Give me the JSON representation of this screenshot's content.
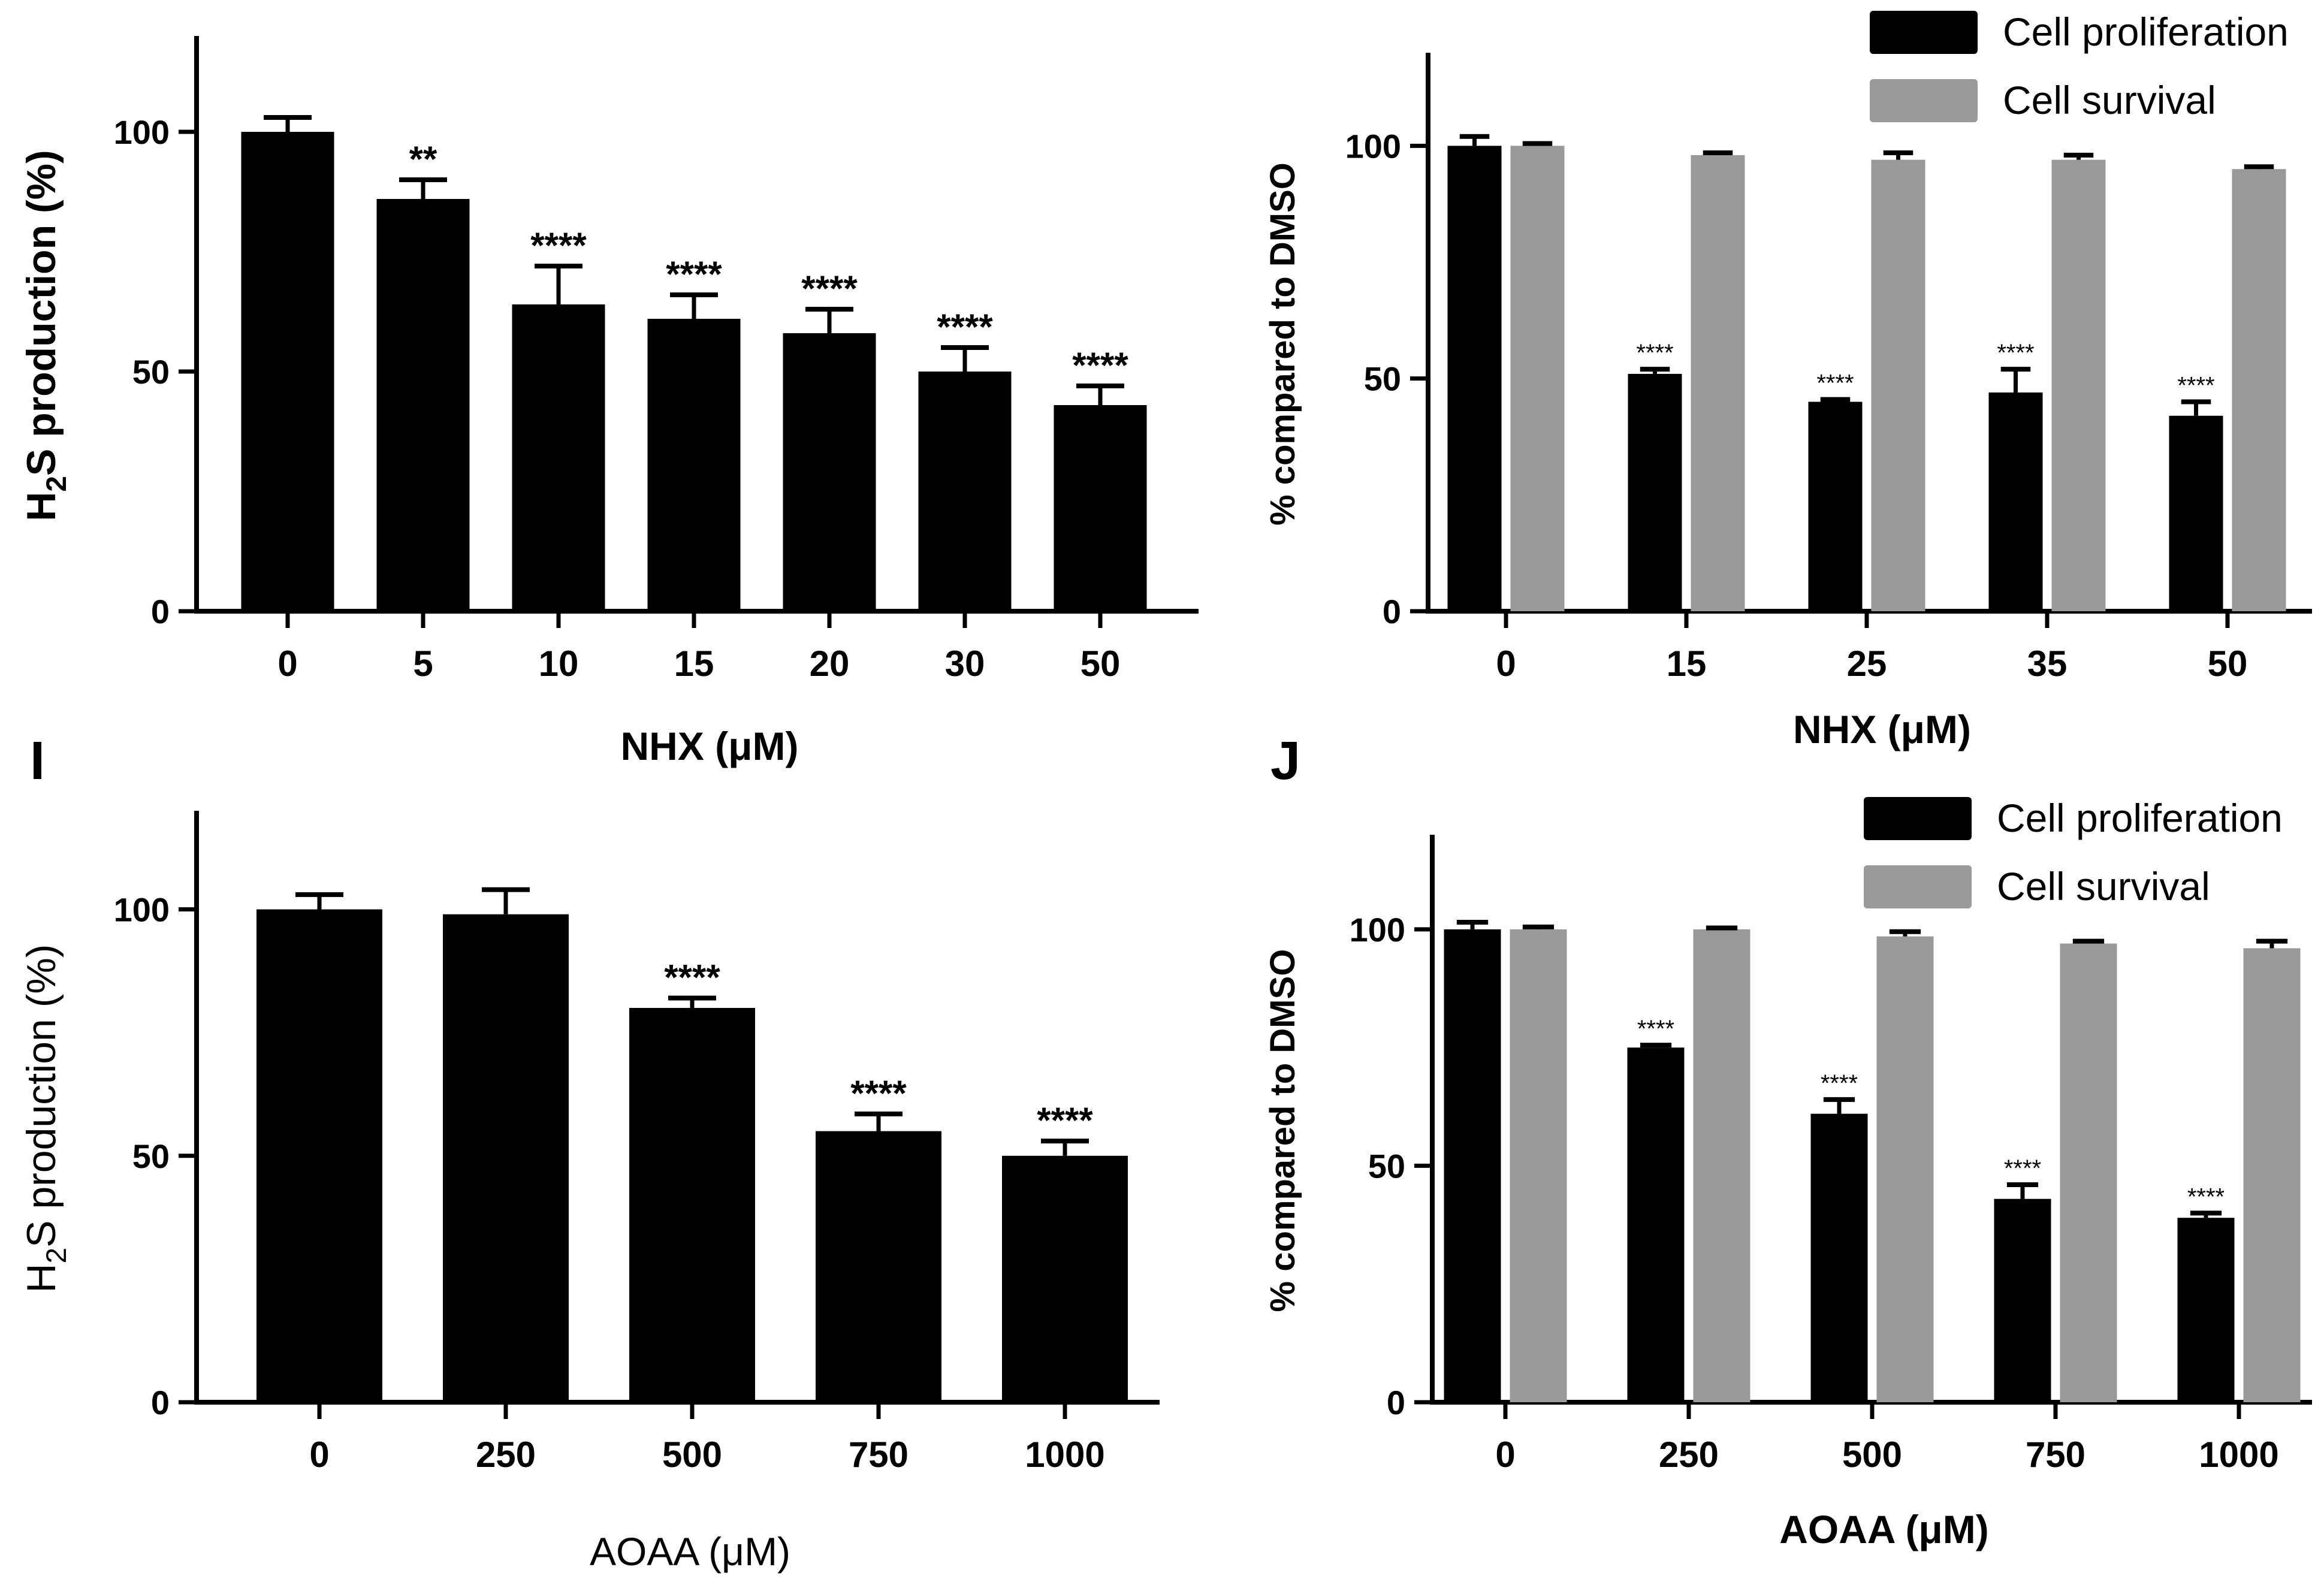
{
  "panels": [
    {
      "panel_label": "",
      "chart_data": {
        "type": "bar",
        "title": "",
        "xlabel": "NHX (μM)",
        "ylabel_main": "H",
        "ylabel_sub": "2",
        "ylabel_rest": "S production (%)",
        "categories": [
          "0",
          "5",
          "10",
          "15",
          "20",
          "30",
          "50"
        ],
        "ylim": [
          0,
          120
        ],
        "yticks": [
          0,
          50,
          100
        ],
        "grid": false,
        "series": [
          {
            "name": "H2S production",
            "color": "#000000",
            "values": [
              100,
              86,
              64,
              61,
              58,
              50,
              43
            ],
            "errors": [
              3,
              4,
              8,
              5,
              5,
              5,
              4
            ],
            "significance": [
              "",
              "**",
              "****",
              "****",
              "****",
              "****",
              "****"
            ]
          }
        ]
      }
    },
    {
      "panel_label": "",
      "chart_data": {
        "type": "bar",
        "title": "",
        "xlabel": "NHX (μM)",
        "ylabel": "% compared to DMSO",
        "categories": [
          "0",
          "15",
          "25",
          "35",
          "50"
        ],
        "ylim": [
          0,
          120
        ],
        "yticks": [
          0,
          50,
          100
        ],
        "grid": false,
        "legend_position": "top-right",
        "series": [
          {
            "name": "Cell proliferation",
            "color": "#000000",
            "values": [
              100,
              51,
              45,
              47,
              42
            ],
            "errors": [
              2,
              1,
              0.5,
              5,
              3
            ],
            "significance": [
              "",
              "****",
              "****",
              "****",
              "****"
            ]
          },
          {
            "name": "Cell survival",
            "color": "#999999",
            "values": [
              100,
              98,
              97,
              97,
              95
            ],
            "errors": [
              0.5,
              0.5,
              1.5,
              1,
              0.5
            ],
            "significance": [
              "",
              "",
              "",
              "",
              ""
            ]
          }
        ]
      }
    },
    {
      "panel_label": "I",
      "chart_data": {
        "type": "bar",
        "title": "",
        "xlabel": "AOAA (μM)",
        "ylabel_main": "H",
        "ylabel_sub": "2",
        "ylabel_rest": "S production (%)",
        "categories": [
          "0",
          "250",
          "500",
          "750",
          "1000"
        ],
        "ylim": [
          0,
          120
        ],
        "yticks": [
          0,
          50,
          100
        ],
        "grid": false,
        "series": [
          {
            "name": "H2S production",
            "color": "#000000",
            "values": [
              100,
              99,
              80,
              55,
              50
            ],
            "errors": [
              3,
              5,
              2,
              3.5,
              3
            ],
            "significance": [
              "",
              "",
              "****",
              "****",
              "****"
            ]
          }
        ]
      }
    },
    {
      "panel_label": "J",
      "chart_data": {
        "type": "bar",
        "title": "",
        "xlabel": "AOAA (μM)",
        "ylabel": "% compared to DMSO",
        "categories": [
          "0",
          "250",
          "500",
          "750",
          "1000"
        ],
        "ylim": [
          0,
          120
        ],
        "yticks": [
          0,
          50,
          100
        ],
        "grid": false,
        "legend_position": "top-right",
        "series": [
          {
            "name": "Cell proliferation",
            "color": "#000000",
            "values": [
              100,
              75,
              61,
              43,
              39
            ],
            "errors": [
              1.5,
              0.5,
              3,
              3,
              1
            ],
            "significance": [
              "",
              "****",
              "****",
              "****",
              "****"
            ]
          },
          {
            "name": "Cell survival",
            "color": "#999999",
            "values": [
              100,
              100,
              98.5,
              97,
              96
            ],
            "errors": [
              0.5,
              0.3,
              1,
              0.5,
              1.5
            ],
            "significance": [
              "",
              "",
              "",
              "",
              ""
            ]
          }
        ]
      }
    }
  ]
}
